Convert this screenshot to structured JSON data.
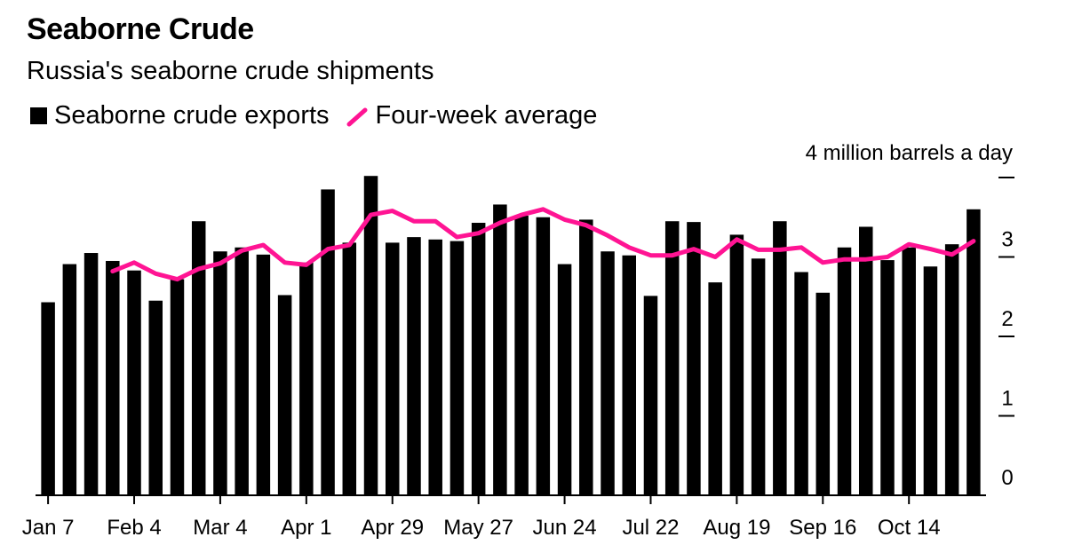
{
  "header": {
    "title": "Seaborne Crude",
    "subtitle": "Russia's seaborne crude shipments"
  },
  "legend": {
    "bars_label": "Seaborne crude exports",
    "line_label": "Four-week average"
  },
  "colors": {
    "bars": "#000000",
    "average_line": "#ff1493"
  },
  "chart_data": {
    "type": "bar",
    "unit_label": "4 million barrels a day",
    "ylim": [
      0,
      4
    ],
    "yticks": [
      "0",
      "1",
      "2",
      "3",
      ""
    ],
    "xtick_labels": [
      "Jan 7",
      "Feb 4",
      "Mar 4",
      "Apr 1",
      "Apr 29",
      "May 27",
      "Jun 24",
      "Jul 22",
      "Aug 19",
      "Sep 16",
      "Oct 14"
    ],
    "xtick_every": 4,
    "grid": false,
    "legend_position": "top-left",
    "series": [
      {
        "name": "Seaborne crude exports",
        "kind": "bar",
        "values": [
          2.43,
          2.91,
          3.05,
          2.95,
          2.83,
          2.45,
          2.72,
          3.45,
          3.07,
          3.12,
          3.03,
          2.52,
          2.93,
          3.85,
          3.18,
          4.02,
          3.18,
          3.25,
          3.22,
          3.2,
          3.43,
          3.66,
          3.52,
          3.5,
          2.91,
          3.47,
          3.07,
          3.02,
          2.51,
          3.45,
          3.44,
          2.68,
          3.28,
          2.98,
          3.45,
          2.81,
          2.55,
          3.12,
          3.38,
          2.96,
          3.12,
          2.88,
          3.16,
          3.6
        ]
      },
      {
        "name": "Four-week average",
        "kind": "line",
        "values": [
          null,
          null,
          null,
          2.82,
          2.93,
          2.79,
          2.72,
          2.85,
          2.92,
          3.08,
          3.15,
          2.93,
          2.9,
          3.1,
          3.15,
          3.53,
          3.58,
          3.45,
          3.45,
          3.25,
          3.3,
          3.43,
          3.53,
          3.6,
          3.47,
          3.4,
          3.27,
          3.12,
          3.02,
          3.02,
          3.1,
          3.0,
          3.22,
          3.09,
          3.09,
          3.12,
          2.93,
          2.97,
          2.97,
          3.0,
          3.16,
          3.1,
          3.03,
          3.2
        ]
      }
    ]
  }
}
